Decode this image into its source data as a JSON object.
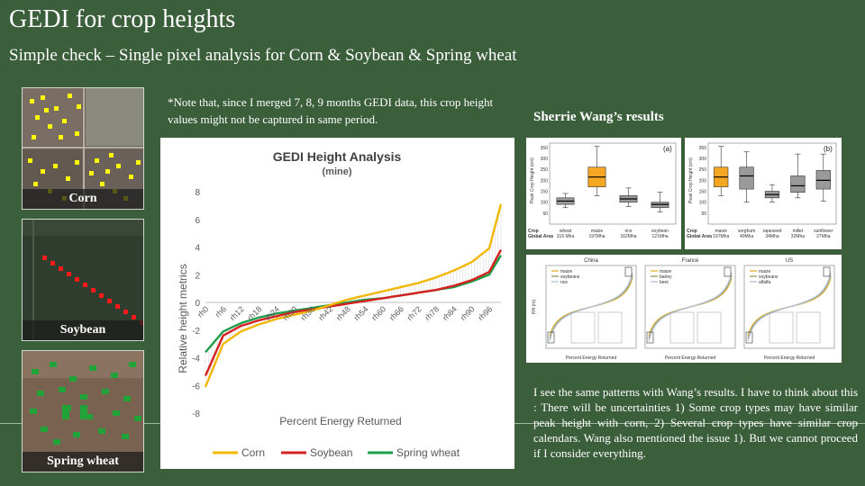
{
  "slide": {
    "title": "GEDI for crop heights",
    "subtitle": "Simple check – Single pixel analysis  for Corn & Soybean  & Spring  wheat",
    "note": "*Note that, since I merged 7, 8, 9 months GEDI data, this crop height values might not be captured in same period.",
    "wang_title": "Sherrie Wang’s results",
    "wang_text": "I see the same patterns with Wang’s results. I have to think about this : There will be uncertainties 1) Some crop types may have similar peak height with corn, 2) Several crop types have similar crop calendars. Wang also mentioned the issue 1). But we cannot proceed if I consider everything."
  },
  "thumbnails": [
    {
      "caption": "Corn"
    },
    {
      "caption": "Soybean"
    },
    {
      "caption": "Spring  wheat"
    }
  ],
  "chart_data": {
    "type": "line",
    "title": "GEDI Height Analysis",
    "subtitle": "(mine)",
    "xlabel": "Percent Energy Returned",
    "ylabel": "Relative  height  metrics",
    "ylim": [
      -8,
      8
    ],
    "yticks": [
      8,
      6,
      4,
      2,
      0,
      -2,
      -4,
      -6,
      -8
    ],
    "x": [
      0,
      6,
      12,
      18,
      24,
      30,
      36,
      42,
      48,
      54,
      60,
      66,
      72,
      78,
      84,
      90,
      96,
      100
    ],
    "xtick_labels": [
      "rh0",
      "rh6",
      "rh12",
      "rh18",
      "rh24",
      "rh30",
      "rh36",
      "rh42",
      "rh48",
      "rh54",
      "rh60",
      "rh66",
      "rh72",
      "rh78",
      "rh84",
      "rh90",
      "rh96"
    ],
    "series": [
      {
        "name": "Corn",
        "color": "#f2b705",
        "values": [
          -6.1,
          -3.0,
          -2.1,
          -1.6,
          -1.2,
          -0.9,
          -0.6,
          -0.2,
          0.2,
          0.5,
          0.8,
          1.1,
          1.4,
          1.8,
          2.3,
          2.9,
          3.9,
          7.1
        ]
      },
      {
        "name": "Soybean",
        "color": "#d62020",
        "values": [
          -5.3,
          -2.4,
          -1.7,
          -1.3,
          -1.0,
          -0.7,
          -0.5,
          -0.3,
          -0.1,
          0.1,
          0.3,
          0.5,
          0.7,
          0.9,
          1.2,
          1.6,
          2.2,
          3.8
        ]
      },
      {
        "name": "Spring wheat",
        "color": "#1e9e4a",
        "values": [
          -3.6,
          -2.1,
          -1.5,
          -1.1,
          -0.8,
          -0.6,
          -0.4,
          -0.2,
          0.0,
          0.2,
          0.3,
          0.5,
          0.7,
          0.9,
          1.1,
          1.5,
          2.0,
          3.4
        ]
      }
    ],
    "grid": false,
    "legend": "bottom"
  },
  "wang_fig_a": {
    "panel": "(a)",
    "ylabel": "Peak Crop Height (cm)",
    "row_label_1": "Crop",
    "row_label_2": "Global Area",
    "boxes": [
      {
        "name": "wheat",
        "area": "216 Mha",
        "color": "#9a9a9a",
        "min": 75,
        "q1": 90,
        "med": 105,
        "q3": 120,
        "max": 140
      },
      {
        "name": "maize",
        "area": "197Mha",
        "color": "#f5a623",
        "min": 130,
        "q1": 170,
        "med": 215,
        "q3": 260,
        "max": 355
      },
      {
        "name": "rice",
        "area": "162Mha",
        "color": "#9a9a9a",
        "min": 80,
        "q1": 100,
        "med": 115,
        "q3": 130,
        "max": 165
      },
      {
        "name": "soybean",
        "area": "121Mha",
        "color": "#9a9a9a",
        "min": 55,
        "q1": 75,
        "med": 90,
        "q3": 100,
        "max": 145
      }
    ]
  },
  "wang_fig_b": {
    "panel": "(b)",
    "ylabel": "Peak Crop Height (cm)",
    "row_label_1": "Crop",
    "row_label_2": "Global Area",
    "boxes": [
      {
        "name": "maize",
        "area": "197Mha",
        "color": "#f5a623",
        "min": 130,
        "q1": 170,
        "med": 215,
        "q3": 260,
        "max": 355
      },
      {
        "name": "sorghum",
        "area": "40Mha",
        "color": "#9a9a9a",
        "min": 100,
        "q1": 160,
        "med": 220,
        "q3": 260,
        "max": 330
      },
      {
        "name": "rapeseed",
        "area": "34Mha",
        "color": "#9a9a9a",
        "min": 100,
        "q1": 120,
        "med": 135,
        "q3": 150,
        "max": 180
      },
      {
        "name": "millet",
        "area": "32Mha",
        "color": "#9a9a9a",
        "min": 120,
        "q1": 145,
        "med": 175,
        "q3": 220,
        "max": 320
      },
      {
        "name": "sunflower",
        "area": "27Mha",
        "color": "#9a9a9a",
        "min": 105,
        "q1": 160,
        "med": 200,
        "q3": 245,
        "max": 320
      }
    ]
  },
  "wang_fig_c": {
    "ylabel": "RH (m)",
    "xlabel": "Percent Energy Returned",
    "panels": [
      {
        "title": "China",
        "legend": [
          "maize",
          "soybeans",
          "rice"
        ]
      },
      {
        "title": "France",
        "legend": [
          "maize",
          "barley",
          "beet"
        ]
      },
      {
        "title": "US",
        "legend": [
          "maize",
          "soybeans",
          "alfalfa"
        ]
      }
    ]
  }
}
